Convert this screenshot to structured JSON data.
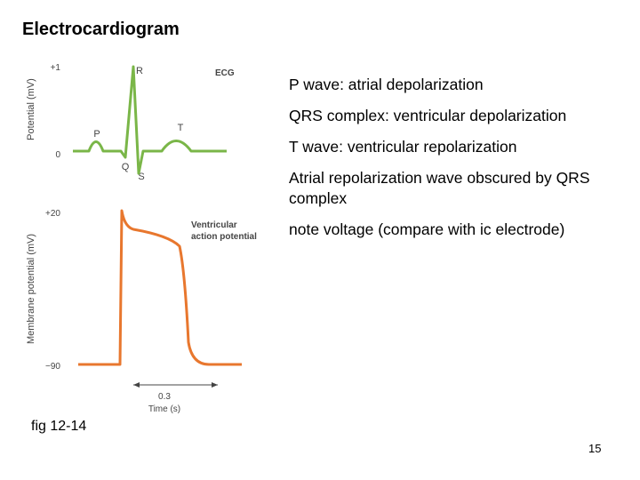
{
  "header": {
    "title": "Electrocardiogram"
  },
  "figure": {
    "ecg": {
      "y_axis_label": "Potential (mV)",
      "y_top": "+1",
      "y_zero": "0",
      "trace_label": "ECG",
      "P": "P",
      "Q": "Q",
      "R": "R",
      "S": "S",
      "T": "T"
    },
    "action_potential": {
      "y_axis_label": "Membrane potential (mV)",
      "y_top": "+20",
      "y_bottom": "−90",
      "trace_label_1": "Ventricular",
      "trace_label_2": "action potential",
      "scale_value": "0.3",
      "x_axis_label": "Time (s)"
    }
  },
  "bullets": [
    "P wave: atrial depolarization",
    "QRS complex: ventricular depolarization",
    "T wave: ventricular repolarization",
    "Atrial repolarization wave obscured by QRS complex",
    "note voltage (compare with ic electrode)"
  ],
  "footer": {
    "figure_ref": "fig 12-14",
    "page_number": "15"
  }
}
